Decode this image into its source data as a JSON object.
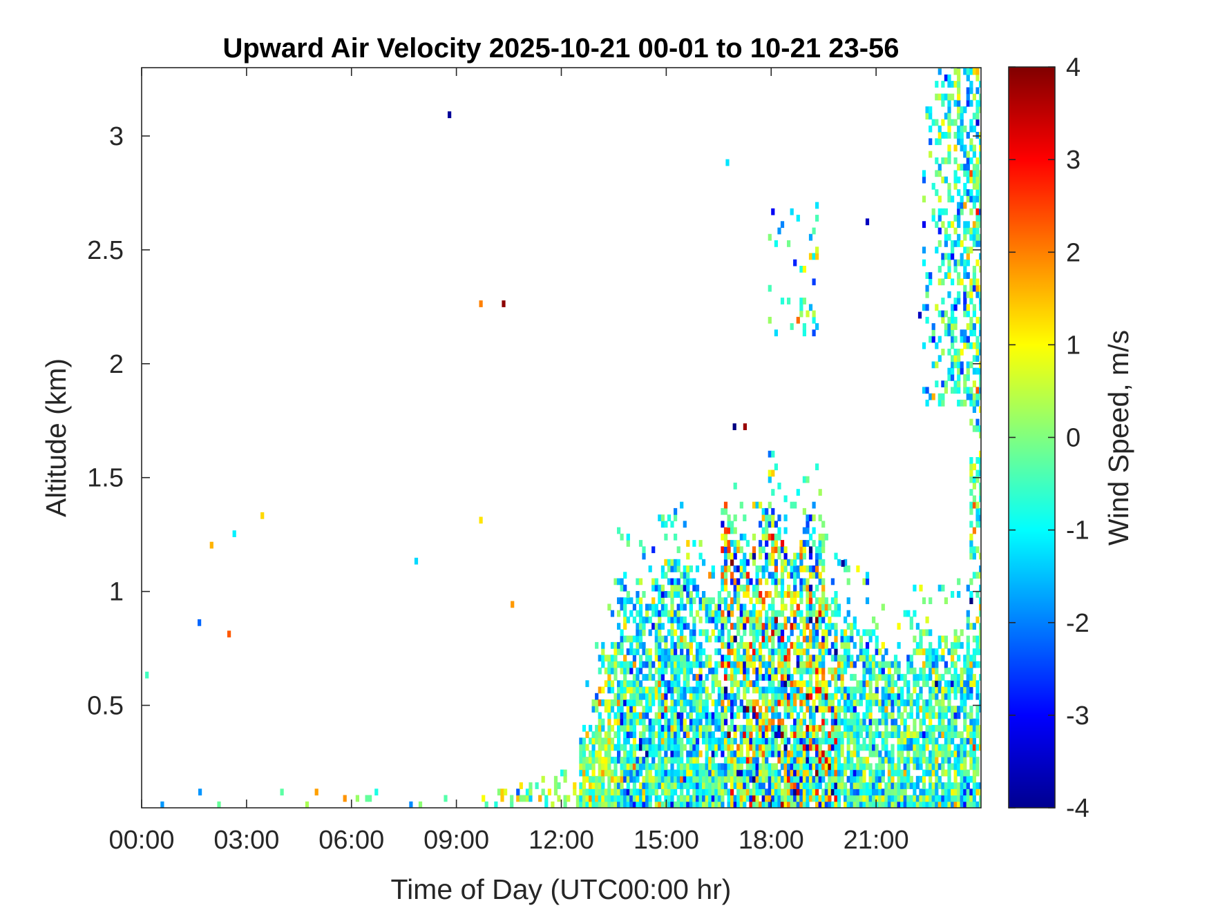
{
  "chart_data": {
    "type": "heatmap",
    "title": "Upward Air Velocity 2025-10-21 00-01 to 10-21 23-56",
    "xlabel": "Time of Day (UTC00:00 hr)",
    "ylabel": "Altitude (km)",
    "colorbar_label": "Wind Speed, m/s",
    "colormap": "jet",
    "x_ticks": [
      "00:00",
      "03:00",
      "06:00",
      "09:00",
      "12:00",
      "15:00",
      "18:00",
      "21:00"
    ],
    "y_ticks": [
      "0.5",
      "1",
      "1.5",
      "2",
      "2.5",
      "3"
    ],
    "colorbar_ticks": [
      "-4",
      "-3",
      "-2",
      "-1",
      "0",
      "1",
      "2",
      "3",
      "4"
    ],
    "xlim_hours": [
      0,
      24
    ],
    "ylim_km": [
      0.05,
      3.3
    ],
    "clim": [
      -4,
      4
    ],
    "x_tick_hours": [
      0,
      3,
      6,
      9,
      12,
      15,
      18,
      21
    ],
    "y_tick_km": [
      0.5,
      1,
      1.5,
      2,
      2.5,
      3
    ],
    "colorbar_tick_values": [
      -4,
      -3,
      -2,
      -1,
      0,
      1,
      2,
      3,
      4
    ],
    "grid": false,
    "data_coverage": {
      "description_sparse_until_hour": 12,
      "dense_echo_regions": [
        {
          "hours": [
            12.5,
            19.5
          ],
          "altitude_top_km": 1.2,
          "dominant_velocity": -1
        },
        {
          "hours": [
            16.5,
            19.5
          ],
          "altitude_top_km": 1.4,
          "dominant_velocity": 0
        },
        {
          "hours": [
            19.5,
            24.0
          ],
          "altitude_top_km": 0.9,
          "dominant_velocity": -1
        },
        {
          "hours": [
            22.3,
            24.0
          ],
          "altitude_range_km": [
            1.8,
            3.3
          ],
          "dominant_velocity": -1
        }
      ]
    },
    "isolated_points": [
      {
        "hour": 8.75,
        "alt_km": 3.08,
        "value": -3.8
      },
      {
        "hour": 9.65,
        "alt_km": 2.25,
        "value": 2.0
      },
      {
        "hour": 10.3,
        "alt_km": 2.25,
        "value": 3.9
      },
      {
        "hour": 16.9,
        "alt_km": 1.71,
        "value": -4.0
      },
      {
        "hour": 17.2,
        "alt_km": 1.71,
        "value": 3.8
      },
      {
        "hour": 20.7,
        "alt_km": 2.61,
        "value": -3.5
      },
      {
        "hour": 22.2,
        "alt_km": 2.2,
        "value": -3.5
      },
      {
        "hour": 20.0,
        "alt_km": 1.11,
        "value": -3.8
      },
      {
        "hour": 16.7,
        "alt_km": 2.87,
        "value": -1.2
      },
      {
        "hour": 3.4,
        "alt_km": 1.32,
        "value": 1.3
      },
      {
        "hour": 1.95,
        "alt_km": 1.19,
        "value": 1.6
      },
      {
        "hour": 2.6,
        "alt_km": 1.24,
        "value": -1.1
      },
      {
        "hour": 7.8,
        "alt_km": 1.12,
        "value": -1.3
      },
      {
        "hour": 9.65,
        "alt_km": 1.3,
        "value": 1.2
      },
      {
        "hour": 10.55,
        "alt_km": 0.93,
        "value": 1.8
      },
      {
        "hour": 1.6,
        "alt_km": 0.85,
        "value": -2.2
      },
      {
        "hour": 2.45,
        "alt_km": 0.8,
        "value": 2.3
      },
      {
        "hour": 0.1,
        "alt_km": 0.62,
        "value": -0.5
      }
    ]
  }
}
